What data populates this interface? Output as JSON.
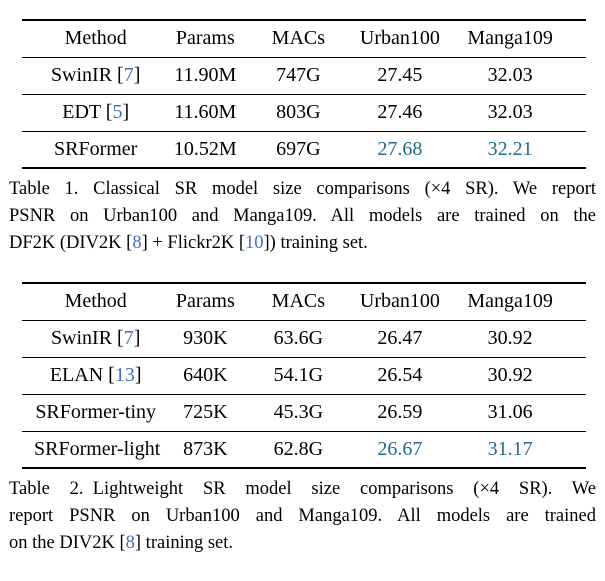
{
  "colors": {
    "citation": "#3e6fc8",
    "highlight": "#1f6a93",
    "text": "#000000",
    "rule": "#000000"
  },
  "table1": {
    "headers": [
      "Method",
      "Params",
      "MACs",
      "Urban100",
      "Manga109"
    ],
    "rows": [
      {
        "method": "SwinIR [",
        "cite": "7",
        "method_end": "]",
        "params": "11.90M",
        "macs": "747G",
        "urban100": "27.45",
        "manga109": "32.03"
      },
      {
        "method": "EDT [",
        "cite": "5",
        "method_end": "]",
        "params": "11.60M",
        "macs": "803G",
        "urban100": "27.46",
        "manga109": "32.03"
      },
      {
        "method": "SRFormer",
        "cite": "",
        "method_end": "",
        "params": "10.52M",
        "macs": "697G",
        "urban100": "27.68",
        "manga109": "32.21"
      }
    ],
    "caption": {
      "line1": "Table 1. Classical SR model size comparisons (×4 SR). We report",
      "line2": "PSNR on Urban100 and Manga109. All models are trained on the",
      "line3_pre": "DF2K (DIV2K [",
      "line3_cite1": "8",
      "line3_mid": "] + Flickr2K [",
      "line3_cite2": "10",
      "line3_post": "]) training set."
    }
  },
  "table2": {
    "headers": [
      "Method",
      "Params",
      "MACs",
      "Urban100",
      "Manga109"
    ],
    "rows": [
      {
        "method": "SwinIR [",
        "cite": "7",
        "method_end": "]",
        "params": "930K",
        "macs": "63.6G",
        "urban100": "26.47",
        "manga109": "30.92"
      },
      {
        "method": "ELAN [",
        "cite": "13",
        "method_end": "]",
        "params": "640K",
        "macs": "54.1G",
        "urban100": "26.54",
        "manga109": "30.92"
      },
      {
        "method": "SRFormer-tiny",
        "cite": "",
        "method_end": "",
        "params": "725K",
        "macs": "45.3G",
        "urban100": "26.59",
        "manga109": "31.06"
      },
      {
        "method": "SRFormer-light",
        "cite": "",
        "method_end": "",
        "params": "873K",
        "macs": "62.8G",
        "urban100": "26.67",
        "manga109": "31.17"
      }
    ],
    "caption": {
      "line1": "Table 2. Lightweight SR model size comparisons (×4 SR). We",
      "line2": "report PSNR on Urban100 and Manga109. All models are trained",
      "line3_pre": "on the DIV2K [",
      "line3_cite1": "8",
      "line3_post": "] training set."
    }
  }
}
